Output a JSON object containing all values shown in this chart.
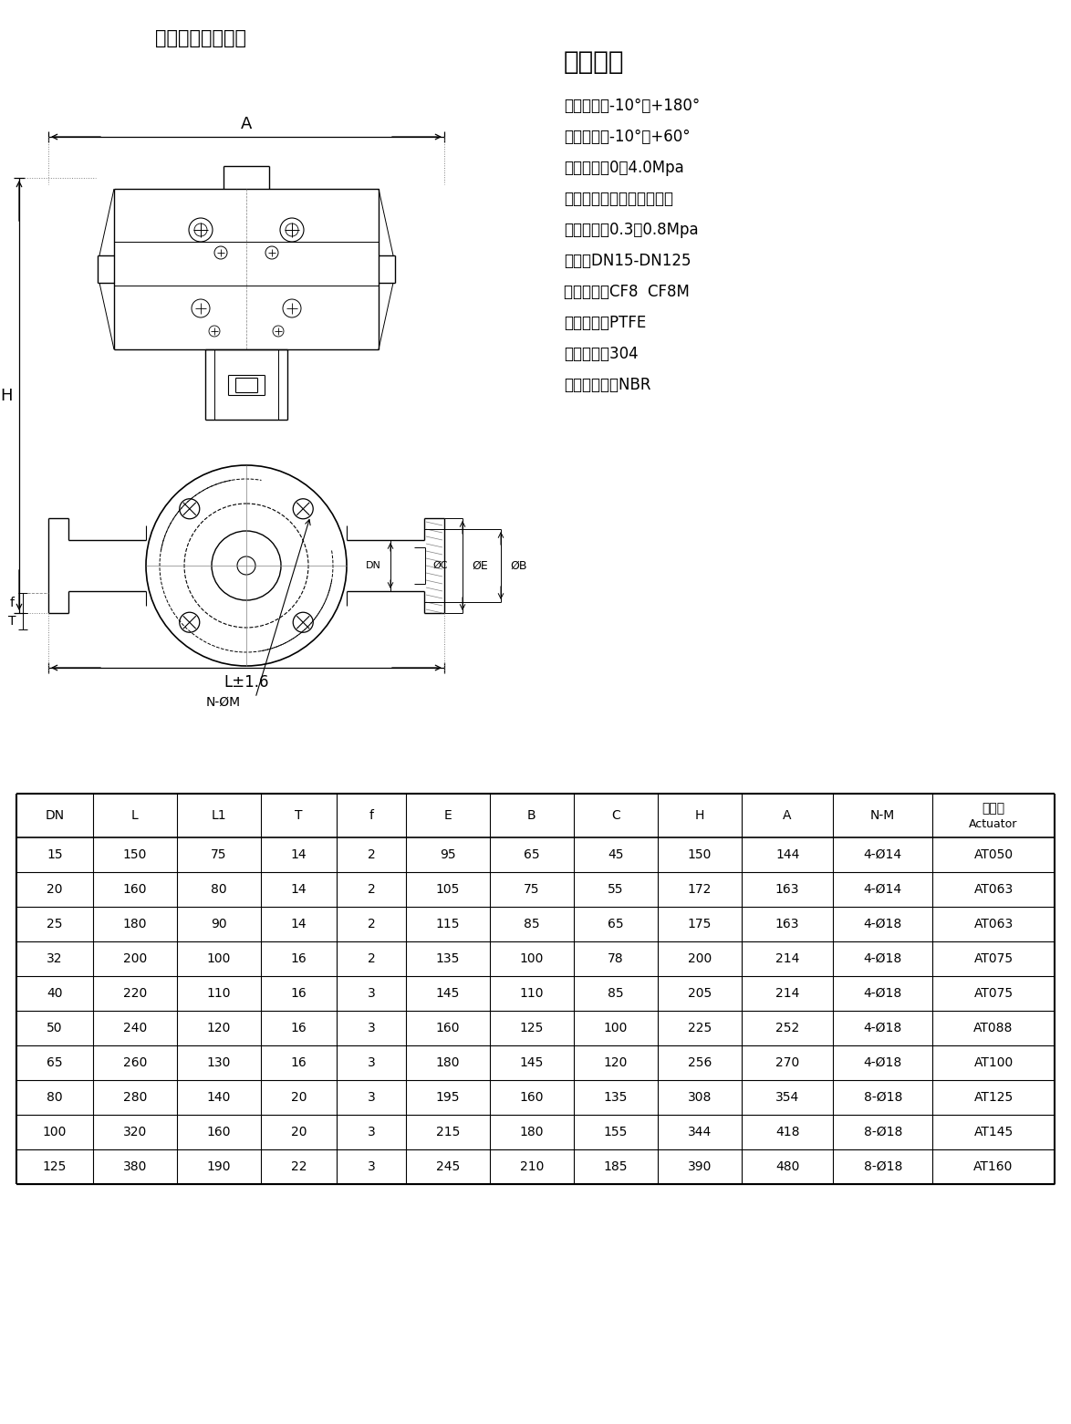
{
  "title": "气动三通法兰球阀",
  "tech_params_title": "技术参数",
  "tech_params": [
    "介质温度：-10°～+180°",
    "环境温度：-10°～+60°",
    "公称压力：0～4.0Mpa",
    "控制气体：中性气体，空气",
    "气源压力：0.3～0.8Mpa",
    "规格：DN15-DN125",
    "阀体材质：CF8  CF8M",
    "阀座材质：PTFE",
    "阀杆材质：304",
    "密封圈材质：NBR"
  ],
  "table_headers": [
    "DN",
    "L",
    "L1",
    "T",
    "f",
    "E",
    "B",
    "C",
    "H",
    "A",
    "N-M",
    "执行器\nActuator"
  ],
  "table_data": [
    [
      15,
      150,
      75,
      14,
      2,
      95,
      65,
      45,
      150,
      144,
      "4-Ø14",
      "AT050"
    ],
    [
      20,
      160,
      80,
      14,
      2,
      105,
      75,
      55,
      172,
      163,
      "4-Ø14",
      "AT063"
    ],
    [
      25,
      180,
      90,
      14,
      2,
      115,
      85,
      65,
      175,
      163,
      "4-Ø18",
      "AT063"
    ],
    [
      32,
      200,
      100,
      16,
      2,
      135,
      100,
      78,
      200,
      214,
      "4-Ø18",
      "AT075"
    ],
    [
      40,
      220,
      110,
      16,
      3,
      145,
      110,
      85,
      205,
      214,
      "4-Ø18",
      "AT075"
    ],
    [
      50,
      240,
      120,
      16,
      3,
      160,
      125,
      100,
      225,
      252,
      "4-Ø18",
      "AT088"
    ],
    [
      65,
      260,
      130,
      16,
      3,
      180,
      145,
      120,
      256,
      270,
      "4-Ø18",
      "AT100"
    ],
    [
      80,
      280,
      140,
      20,
      3,
      195,
      160,
      135,
      308,
      354,
      "8-Ø18",
      "AT125"
    ],
    [
      100,
      320,
      160,
      20,
      3,
      215,
      180,
      155,
      344,
      418,
      "8-Ø18",
      "AT145"
    ],
    [
      125,
      380,
      190,
      22,
      3,
      245,
      210,
      185,
      390,
      480,
      "8-Ø18",
      "AT160"
    ]
  ],
  "bg_color": "#ffffff",
  "line_color": "#000000",
  "text_color": "#000000"
}
